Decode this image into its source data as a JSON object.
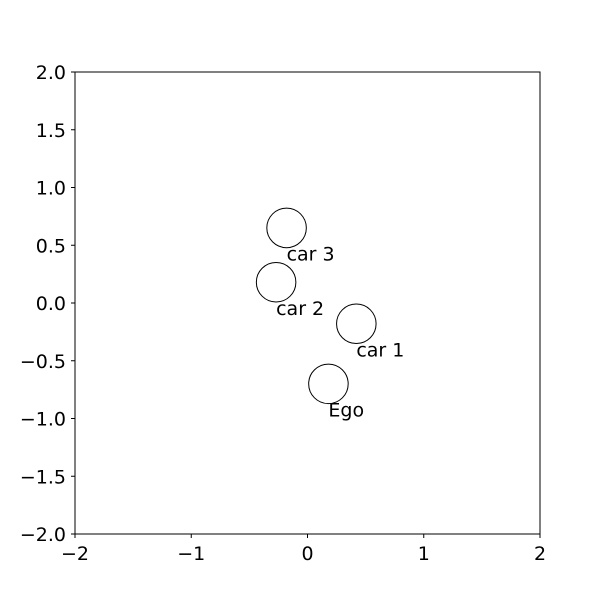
{
  "chart_data": {
    "type": "scatter",
    "title": "",
    "xlabel": "",
    "ylabel": "",
    "xlim": [
      -2,
      2
    ],
    "ylim": [
      -2,
      2
    ],
    "grid": false,
    "marker": "open-circle",
    "marker_radius": 0.17,
    "x_ticks": [
      {
        "value": -2,
        "label": "−2"
      },
      {
        "value": -1,
        "label": "−1"
      },
      {
        "value": 0,
        "label": "0"
      },
      {
        "value": 1,
        "label": "1"
      },
      {
        "value": 2,
        "label": "2"
      }
    ],
    "y_ticks": [
      {
        "value": -2,
        "label": "−2.0"
      },
      {
        "value": -1.5,
        "label": "−1.5"
      },
      {
        "value": -1,
        "label": "−1.0"
      },
      {
        "value": -0.5,
        "label": "−0.5"
      },
      {
        "value": 0,
        "label": "0.0"
      },
      {
        "value": 0.5,
        "label": "0.5"
      },
      {
        "value": 1,
        "label": "1.0"
      },
      {
        "value": 1.5,
        "label": "1.5"
      },
      {
        "value": 2,
        "label": "2.0"
      }
    ],
    "points": [
      {
        "label": "Ego",
        "x": 0.18,
        "y": -0.7
      },
      {
        "label": "car 1",
        "x": 0.42,
        "y": -0.18
      },
      {
        "label": "car 2",
        "x": -0.27,
        "y": 0.18
      },
      {
        "label": "car 3",
        "x": -0.18,
        "y": 0.65
      }
    ],
    "colors": {
      "marker_edge": "#000000",
      "marker_face": "#ffffff",
      "axes": "#000000"
    }
  }
}
